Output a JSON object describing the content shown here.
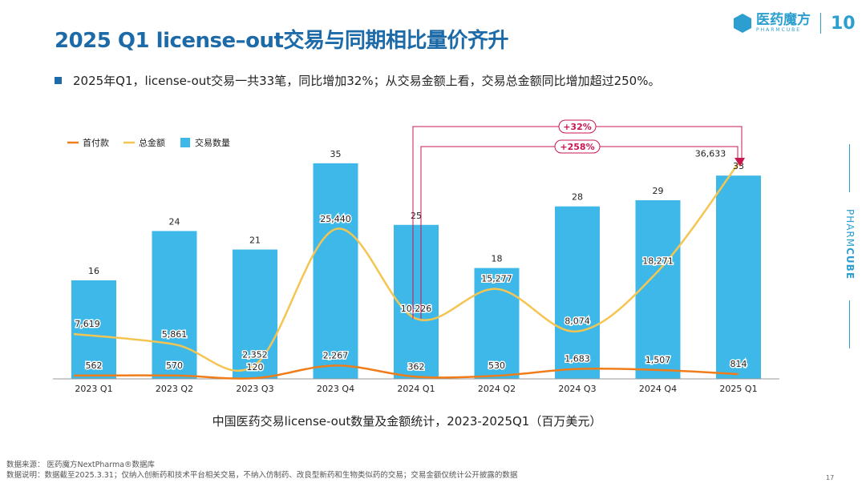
{
  "header": {
    "title": "2025 Q1 license–out交易与同期相比量价齐升",
    "logo_cn": "医药魔方",
    "logo_en": "PHARMCUBE",
    "logo_anniv": "10"
  },
  "bullet": "2025年Q1，license-out交易一共33笔，同比增加32%；从交易金额上看，交易总金额同比增加超过250%。",
  "side_brand": {
    "text_light": "PHARM",
    "text_bold": "CUBE"
  },
  "chart_data": {
    "type": "bar+line",
    "categories": [
      "2023 Q1",
      "2023 Q2",
      "2023 Q3",
      "2023 Q4",
      "2024 Q1",
      "2024 Q2",
      "2024 Q3",
      "2024 Q4",
      "2025 Q1"
    ],
    "series": [
      {
        "name": "交易数量",
        "kind": "bar",
        "color": "#3db8e8",
        "values": [
          16,
          24,
          21,
          35,
          25,
          18,
          28,
          29,
          33
        ],
        "labels": [
          "16",
          "24",
          "21",
          "35",
          "25",
          "18",
          "28",
          "29",
          "33"
        ]
      },
      {
        "name": "总金额",
        "kind": "line",
        "color": "#f5c552",
        "values": [
          7619,
          5861,
          2352,
          25440,
          10226,
          15277,
          8074,
          18271,
          36633
        ],
        "labels": [
          "7,619",
          "5,861",
          "2,352",
          "25,440",
          "10,226",
          "15,277",
          "8,074",
          "18,271",
          "36,633"
        ]
      },
      {
        "name": "首付款",
        "kind": "line",
        "color": "#f07d1a",
        "values": [
          562,
          570,
          120,
          2267,
          362,
          530,
          1683,
          1507,
          814
        ],
        "labels": [
          "562",
          "570",
          "120",
          "2,267",
          "362",
          "530",
          "1,683",
          "1,507",
          "814"
        ]
      }
    ],
    "legend": [
      "首付款",
      "总金额",
      "交易数量"
    ],
    "legend_position": "top-left",
    "annotations": [
      {
        "text": "+32%",
        "from": "2024 Q1",
        "to": "2025 Q1",
        "metric": "交易数量"
      },
      {
        "text": "+258%",
        "from": "2024 Q1",
        "to": "2025 Q1",
        "metric": "总金额"
      }
    ],
    "annotation_color": "#c8174f",
    "title": "中国医药交易license-out数量及金额统计，2023-2025Q1（百万美元）"
  },
  "footer": {
    "source": "数据来源：  医药魔方NextPharma®数据库",
    "note": "数据说明：数据截至2025.3.31；仅纳入创新药和技术平台相关交易，不纳入仿制药、改良型新药和生物类似药的交易；交易金额仅统计公开披露的数据",
    "page": "17"
  }
}
